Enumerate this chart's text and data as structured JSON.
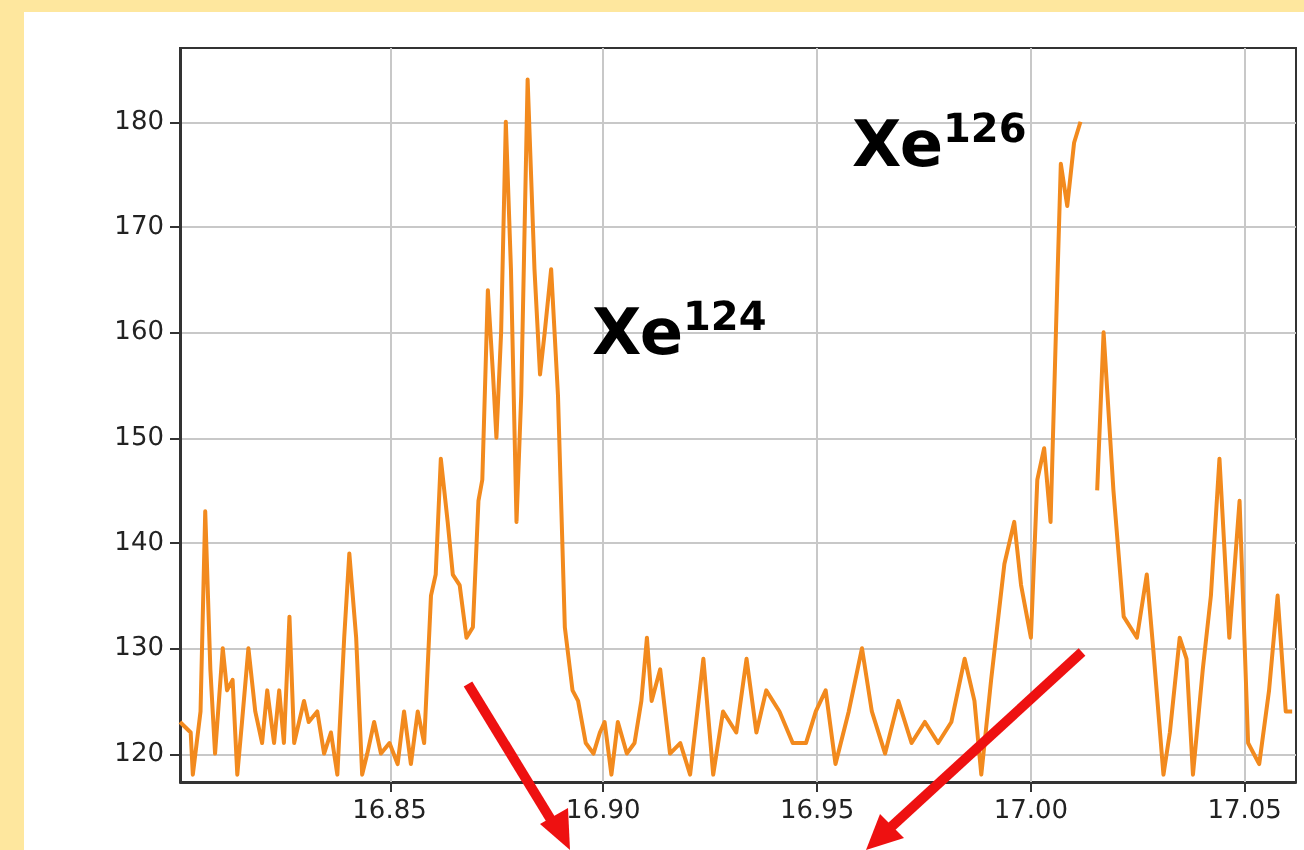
{
  "chart_data": {
    "type": "line",
    "x": [
      16.801,
      16.8035,
      16.804,
      16.8058,
      16.8069,
      16.8081,
      16.8092,
      16.811,
      16.812,
      16.8133,
      16.8144,
      16.8155,
      16.817,
      16.8186,
      16.8202,
      16.8214,
      16.823,
      16.8242,
      16.8253,
      16.8266,
      16.8277,
      16.83,
      16.8311,
      16.8331,
      16.8347,
      16.8363,
      16.8378,
      16.8394,
      16.8406,
      16.8422,
      16.8436,
      16.8448,
      16.8464,
      16.848,
      16.85,
      16.8519,
      16.8534,
      16.855,
      16.8566,
      16.8581,
      16.8597,
      16.8608,
      16.862,
      16.8636,
      16.8648,
      16.8664,
      16.868,
      16.8695,
      16.8708,
      16.8717,
      16.873,
      16.8742,
      16.875,
      16.8761,
      16.8772,
      16.8784,
      16.8797,
      16.8808,
      16.8823,
      16.8839,
      16.8852,
      16.8863,
      16.8878,
      16.8894,
      16.891,
      16.8928,
      16.8941,
      16.8959,
      16.8977,
      16.8992,
      16.9003,
      16.9019,
      16.9034,
      16.9055,
      16.9073,
      16.9089,
      16.9102,
      16.9113,
      16.9133,
      16.9156,
      16.918,
      16.9203,
      16.9234,
      16.9257,
      16.928,
      16.9311,
      16.9335,
      16.9358,
      16.9381,
      16.9412,
      16.9443,
      16.9474,
      16.9497,
      16.952,
      16.9543,
      16.9574,
      16.9605,
      16.9628,
      16.9659,
      16.969,
      16.9721,
      16.9752,
      16.9783,
      16.9814,
      16.9845,
      16.9868,
      16.9884,
      16.9907,
      16.9938,
      16.9961,
      16.9977,
      17.0,
      17.0015,
      17.0031,
      17.0046,
      17.0062,
      17.007,
      17.0085,
      17.0101,
      17.0116,
      17.0127,
      17.014,
      17.0155,
      17.017,
      17.0193,
      17.0217,
      17.0248,
      17.0271,
      17.0286,
      17.031,
      17.0325,
      17.0348,
      17.0364,
      17.0379,
      17.0402,
      17.0421,
      17.0441,
      17.0464,
      17.0488,
      17.0508,
      17.0534,
      17.0557,
      17.0577,
      17.0596,
      17.0611
    ],
    "series": [
      {
        "color": "#f28a1e",
        "values": [
          123,
          122,
          118,
          124,
          143,
          128,
          120,
          130,
          126,
          127,
          118,
          123,
          130,
          124,
          121,
          126,
          121,
          126,
          121,
          133,
          121,
          125,
          123,
          124,
          120,
          122,
          118,
          131,
          139,
          131,
          118,
          120,
          123,
          120,
          121,
          119,
          124,
          119,
          124,
          121,
          135,
          137,
          148,
          142,
          137,
          136,
          131,
          132,
          144,
          146,
          164,
          156,
          150,
          160,
          180,
          166,
          142,
          154,
          184,
          166,
          156,
          160,
          166,
          154,
          132,
          126,
          125,
          121,
          120,
          122,
          123,
          118,
          123,
          120,
          121,
          125,
          131,
          125,
          128,
          120,
          121,
          118,
          129,
          118,
          124,
          122,
          129,
          122,
          126,
          124,
          121,
          121,
          124,
          126,
          119,
          124,
          130,
          124,
          120,
          125,
          121,
          123,
          121,
          123,
          129,
          125,
          118,
          127,
          138,
          142,
          136,
          131,
          146,
          149,
          142,
          165,
          176,
          172,
          178,
          180,
          null,
          null,
          145,
          160,
          145,
          133,
          131,
          137,
          130,
          118,
          122,
          131,
          129,
          118,
          128,
          135,
          148,
          131,
          144,
          121,
          119,
          126,
          135,
          124,
          124
        ]
      }
    ],
    "xlim": [
      16.801,
      17.062
    ],
    "ylim": [
      117.3,
      187
    ],
    "xticks": [
      16.85,
      {
        "value": 16.9,
        "label": "16.90"
      },
      16.95,
      {
        "value": 17.0,
        "label": "17.00"
      },
      17.05
    ],
    "yticks": [
      120,
      130,
      140,
      150,
      160,
      170,
      180
    ],
    "grid": true,
    "marker": "none",
    "annotations": [
      "Xe$^{124}$",
      "Xe$^{126}$"
    ]
  }
}
